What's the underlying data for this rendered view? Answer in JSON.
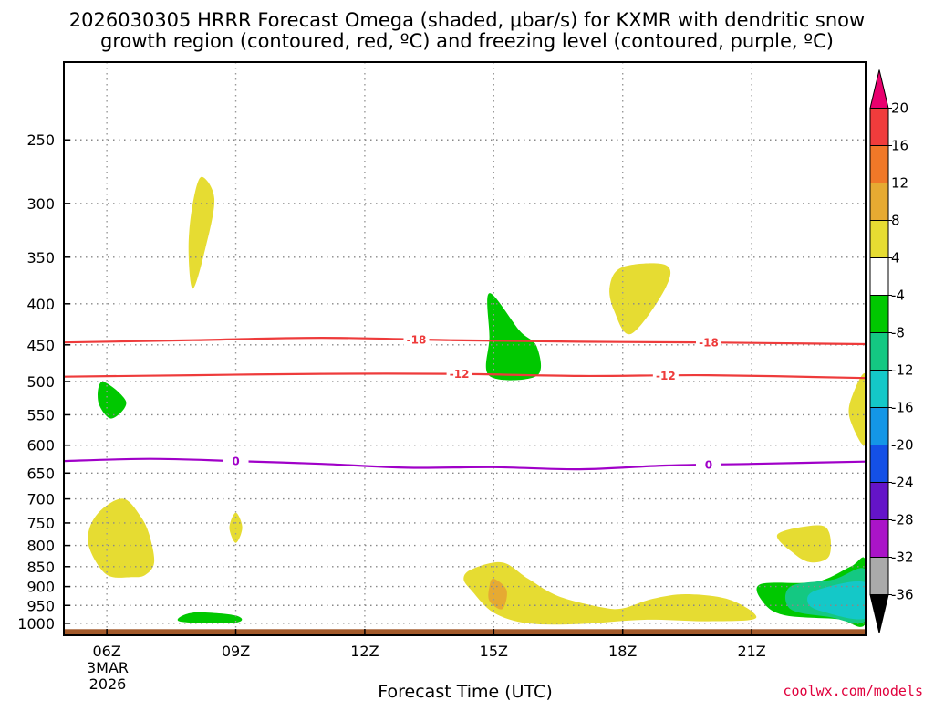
{
  "chart_data": {
    "type": "contour-time-height",
    "title_line1": "2026030305 HRRR Forecast Omega (shaded, μbar/s) for KXMR with dendritic snow",
    "title_line2": "growth region (contoured, red, ºC) and freezing level (contoured, purple, ºC)",
    "xlabel": "Forecast Time (UTC)",
    "date_label": [
      "3MAR",
      "2026"
    ],
    "credit": "coolwx.com/models",
    "x_range_hours": [
      5,
      23.65
    ],
    "y_range_hpa": [
      200,
      1035
    ],
    "y_scale": "log",
    "x_ticks": [
      {
        "h": 6,
        "label": "06Z"
      },
      {
        "h": 9,
        "label": "09Z"
      },
      {
        "h": 12,
        "label": "12Z"
      },
      {
        "h": 15,
        "label": "15Z"
      },
      {
        "h": 18,
        "label": "18Z"
      },
      {
        "h": 21,
        "label": "21Z"
      }
    ],
    "y_ticks": [
      250,
      300,
      350,
      400,
      450,
      500,
      550,
      600,
      650,
      700,
      750,
      800,
      850,
      900,
      950,
      1000
    ],
    "grid": true,
    "colorbar": {
      "ticks": [
        "20",
        "16",
        "12",
        "8",
        "4",
        "-4",
        "-8",
        "-12",
        "-16",
        "-20",
        "-24",
        "-28",
        "-32",
        "-36"
      ],
      "colors": [
        "#e8006e",
        "#f03c3c",
        "#f07828",
        "#e6aa32",
        "#e6dc32",
        "#ffffff",
        "#00c800",
        "#14c882",
        "#14c8c8",
        "#1496e6",
        "#1450e6",
        "#6414c8",
        "#aa14c8",
        "#aaaaaa",
        "#000000"
      ]
    },
    "isotherms": [
      {
        "value": -18,
        "label": "-18",
        "color": "#ee3b3b",
        "points": [
          [
            5,
            447
          ],
          [
            8,
            444
          ],
          [
            11,
            441
          ],
          [
            14,
            444
          ],
          [
            17,
            446
          ],
          [
            20,
            447
          ],
          [
            23.65,
            449
          ]
        ],
        "label_at": [
          13.2,
          20.0
        ]
      },
      {
        "value": -12,
        "label": "-12",
        "color": "#ee3b3b",
        "points": [
          [
            5,
            493
          ],
          [
            8,
            491
          ],
          [
            11,
            489
          ],
          [
            14,
            489
          ],
          [
            17,
            492
          ],
          [
            20,
            491
          ],
          [
            23.65,
            495
          ]
        ],
        "label_at": [
          14.2,
          19.0
        ]
      },
      {
        "value": 0,
        "label": "0",
        "color": "#a000c8",
        "points": [
          [
            5,
            628
          ],
          [
            7,
            624
          ],
          [
            9,
            628
          ],
          [
            11,
            633
          ],
          [
            13,
            640
          ],
          [
            15,
            639
          ],
          [
            17,
            643
          ],
          [
            19,
            636
          ],
          [
            21,
            633
          ],
          [
            23.65,
            629
          ]
        ],
        "label_at": [
          9.0,
          20.0
        ]
      }
    ],
    "omega_regions": [
      {
        "color": "#e6dc32",
        "points": [
          [
            8.0,
            300
          ],
          [
            8.2,
            278
          ],
          [
            8.5,
            296
          ],
          [
            8.3,
            340
          ],
          [
            8.0,
            383
          ],
          [
            7.9,
            340
          ]
        ]
      },
      {
        "color": "#e6dc32",
        "points": [
          [
            6.4,
            700
          ],
          [
            6.8,
            738
          ],
          [
            7.0,
            780
          ],
          [
            7.1,
            840
          ],
          [
            6.9,
            870
          ],
          [
            6.6,
            876
          ],
          [
            6.0,
            870
          ],
          [
            5.6,
            808
          ],
          [
            5.6,
            760
          ],
          [
            5.9,
            720
          ]
        ]
      },
      {
        "color": "#e6dc32",
        "points": [
          [
            9.0,
            728
          ],
          [
            9.15,
            760
          ],
          [
            9.0,
            794
          ],
          [
            8.85,
            760
          ]
        ]
      },
      {
        "color": "#e6dc32",
        "points": [
          [
            18.0,
            360
          ],
          [
            19.0,
            358
          ],
          [
            19.0,
            382
          ],
          [
            18.2,
            436
          ],
          [
            17.8,
            408
          ],
          [
            17.7,
            380
          ]
        ]
      },
      {
        "color": "#e6dc32",
        "points": [
          [
            14.5,
            856
          ],
          [
            15.2,
            840
          ],
          [
            15.8,
            880
          ],
          [
            16.5,
            925
          ],
          [
            17.5,
            955
          ],
          [
            18.0,
            958
          ],
          [
            18.7,
            932
          ],
          [
            19.5,
            920
          ],
          [
            20.5,
            935
          ],
          [
            21.1,
            985
          ],
          [
            20.0,
            994
          ],
          [
            18.5,
            990
          ],
          [
            17.0,
            1002
          ],
          [
            15.8,
            1000
          ],
          [
            15.0,
            970
          ],
          [
            14.5,
            912
          ],
          [
            14.3,
            880
          ]
        ]
      },
      {
        "color": "#e6dc32",
        "points": [
          [
            22.5,
            755
          ],
          [
            22.8,
            770
          ],
          [
            22.8,
            825
          ],
          [
            22.4,
            840
          ],
          [
            22.0,
            820
          ],
          [
            21.6,
            775
          ]
        ]
      },
      {
        "color": "#e6dc32",
        "points": [
          [
            23.65,
            490
          ],
          [
            23.65,
            598
          ],
          [
            23.3,
            560
          ],
          [
            23.3,
            528
          ]
        ]
      },
      {
        "color": "#e6aa32",
        "points": [
          [
            15.0,
            880
          ],
          [
            15.3,
            910
          ],
          [
            15.2,
            960
          ],
          [
            14.9,
            938
          ],
          [
            14.9,
            900
          ]
        ]
      },
      {
        "color": "#00c800",
        "points": [
          [
            5.9,
            500
          ],
          [
            6.45,
            530
          ],
          [
            6.1,
            556
          ],
          [
            5.8,
            530
          ]
        ]
      },
      {
        "color": "#00c800",
        "points": [
          [
            14.9,
            388
          ],
          [
            15.6,
            432
          ],
          [
            16.0,
            452
          ],
          [
            16.0,
            492
          ],
          [
            14.9,
            492
          ],
          [
            14.9,
            440
          ]
        ]
      },
      {
        "color": "#00c800",
        "points": [
          [
            8.0,
            970
          ],
          [
            9.0,
            978
          ],
          [
            9.0,
            998
          ],
          [
            7.7,
            995
          ]
        ]
      },
      {
        "color": "#00c800",
        "points": [
          [
            21.2,
            894
          ],
          [
            22.5,
            888
          ],
          [
            23.3,
            850
          ],
          [
            23.65,
            836
          ],
          [
            23.65,
            1000
          ],
          [
            23.0,
            988
          ],
          [
            21.8,
            978
          ],
          [
            21.3,
            946
          ]
        ]
      },
      {
        "color": "#14c882",
        "points": [
          [
            21.9,
            900
          ],
          [
            22.9,
            882
          ],
          [
            23.65,
            858
          ],
          [
            23.65,
            992
          ],
          [
            22.8,
            982
          ],
          [
            21.9,
            960
          ]
        ]
      },
      {
        "color": "#14c8c8",
        "points": [
          [
            22.5,
            910
          ],
          [
            23.65,
            890
          ],
          [
            23.65,
            985
          ],
          [
            22.6,
            965
          ],
          [
            22.3,
            940
          ]
        ]
      }
    ],
    "surface": {
      "color": "#a35a2a",
      "from_hpa": 1017
    }
  }
}
